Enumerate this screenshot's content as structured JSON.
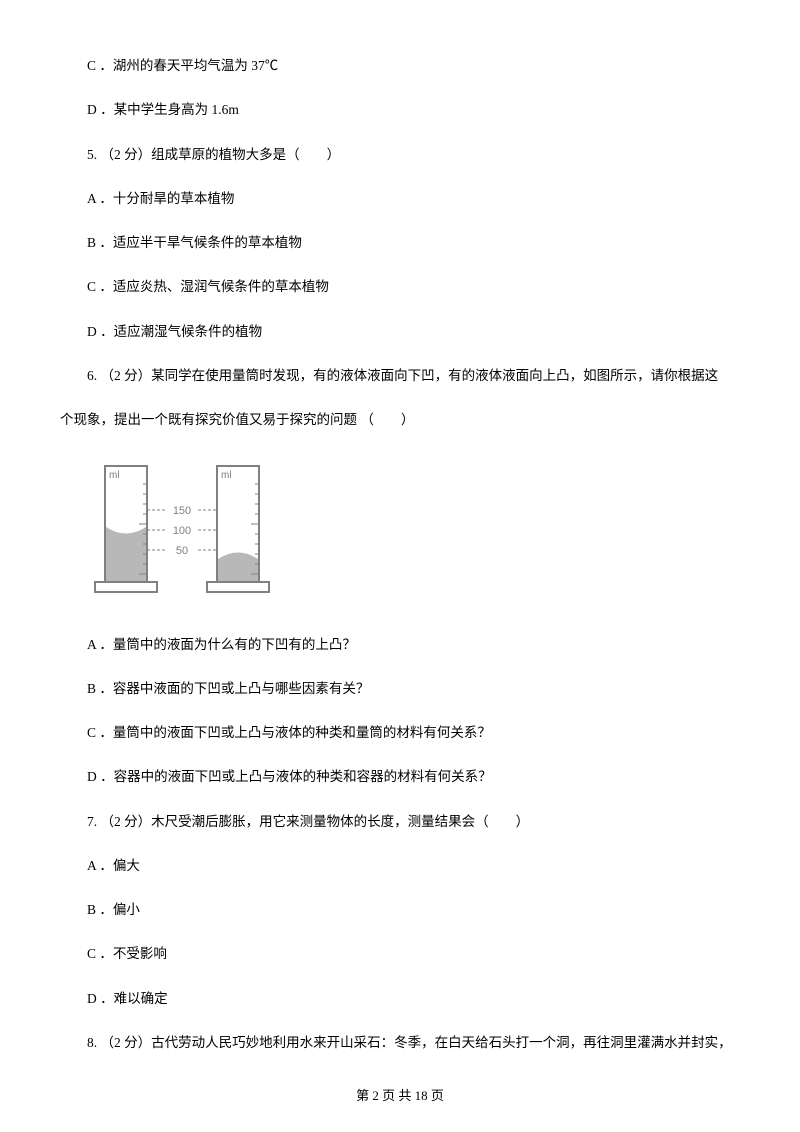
{
  "items": [
    {
      "key": "l1",
      "cls": "line",
      "text": "C ．湖州的春天平均气温为 37℃"
    },
    {
      "key": "l2",
      "cls": "line",
      "text": "D ．某中学生身高为 1.6m"
    },
    {
      "key": "l3",
      "cls": "line",
      "text": "5.  （2 分）组成草原的植物大多是（　　）"
    },
    {
      "key": "l4",
      "cls": "line",
      "text": "A ．十分耐旱的草本植物"
    },
    {
      "key": "l5",
      "cls": "line",
      "text": "B ．适应半干旱气候条件的草本植物"
    },
    {
      "key": "l6",
      "cls": "line",
      "text": "C ．适应炎热、湿润气候条件的草本植物"
    },
    {
      "key": "l7",
      "cls": "line",
      "text": "D ．适应潮湿气候条件的植物"
    },
    {
      "key": "l8",
      "cls": "line",
      "text": "6.  （2 分）某同学在使用量筒时发现，有的液体液面向下凹，有的液体液面向上凸，如图所示，请你根据这"
    },
    {
      "key": "l9",
      "cls": "line-noindent",
      "text": "个现象，提出一个既有探究价值又易于探究的问题  （　　）"
    },
    {
      "key": "l10",
      "cls": "line",
      "text": "A ．量筒中的液面为什么有的下凹有的上凸？"
    },
    {
      "key": "l11",
      "cls": "line",
      "text": "B ．容器中液面的下凹或上凸与哪些因素有关？"
    },
    {
      "key": "l12",
      "cls": "line",
      "text": "C ．量筒中的液面下凹或上凸与液体的种类和量筒的材料有何关系？"
    },
    {
      "key": "l13",
      "cls": "line",
      "text": "D ．容器中的液面下凹或上凸与液体的种类和容器的材料有何关系？"
    },
    {
      "key": "l14",
      "cls": "line",
      "text": "7.  （2 分）木尺受潮后膨胀，用它来测量物体的长度，测量结果会（　　）"
    },
    {
      "key": "l15",
      "cls": "line",
      "text": "A ．偏大"
    },
    {
      "key": "l16",
      "cls": "line",
      "text": "B ．偏小"
    },
    {
      "key": "l17",
      "cls": "line",
      "text": "C ．不受影响"
    },
    {
      "key": "l18",
      "cls": "line",
      "text": "D ．难以确定"
    },
    {
      "key": "l19",
      "cls": "line",
      "text": "8.  （2 分）古代劳动人民巧妙地利用水来开山采石：冬季，在白天给石头打一个洞，再往洞里灌满水并封实，"
    }
  ],
  "figure": {
    "ml_label": "ml",
    "ticks": [
      "150",
      "100",
      "50"
    ],
    "width": 188,
    "height": 150,
    "colors": {
      "outline": "#808080",
      "tick": "#808080",
      "liquid": "#b8b8b8",
      "label": "#808080",
      "bg": "#ffffff"
    }
  },
  "footer": {
    "text": "第  2  页  共  18  页"
  }
}
